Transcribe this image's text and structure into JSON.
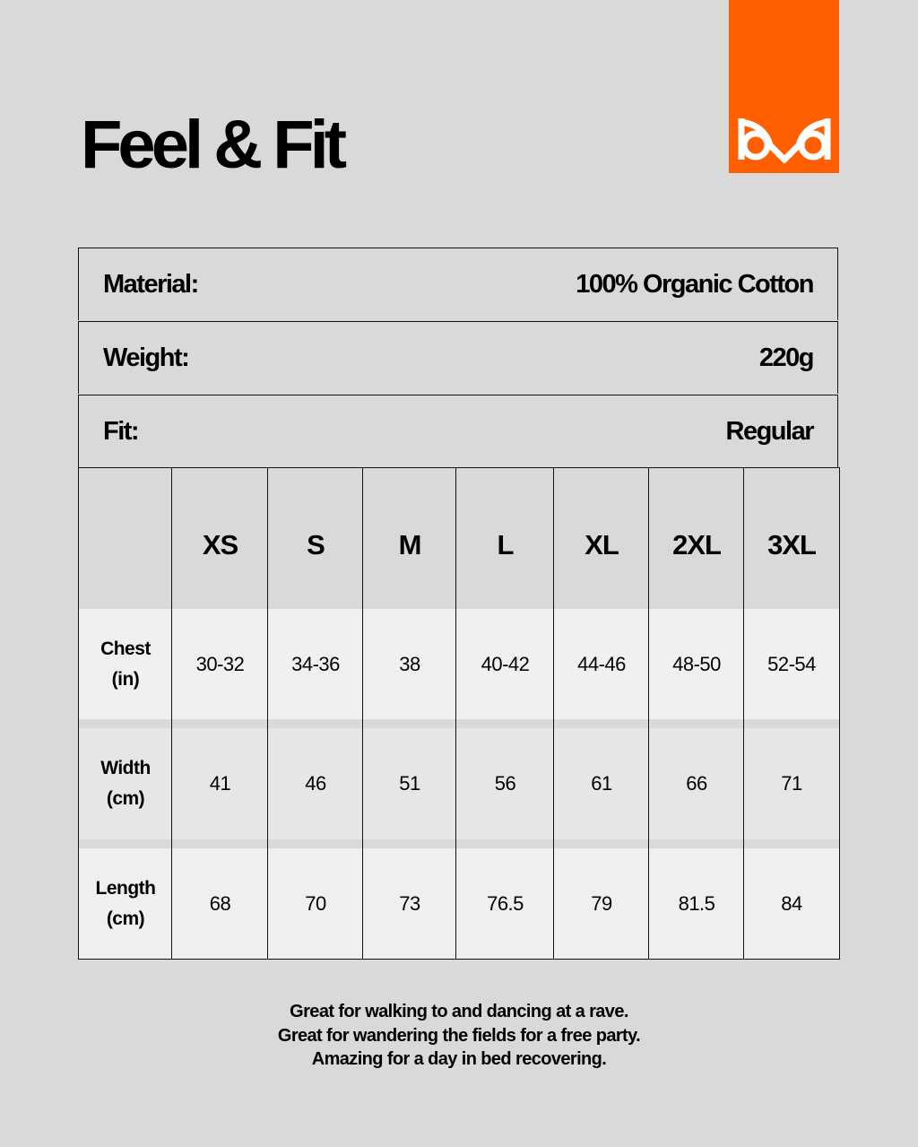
{
  "title": "Feel & Fit",
  "brand_color": "#ff5f00",
  "specs": [
    {
      "label": "Material:",
      "value": "100% Organic Cotton"
    },
    {
      "label": "Weight:",
      "value": "220g"
    },
    {
      "label": "Fit:",
      "value": "Regular"
    }
  ],
  "size_table": {
    "sizes": [
      "XS",
      "S",
      "M",
      "L",
      "XL",
      "2XL",
      "3XL"
    ],
    "rows": [
      {
        "label": [
          "Chest",
          "(in)"
        ],
        "values": [
          "30-32",
          "34-36",
          "38",
          "40-42",
          "44-46",
          "48-50",
          "52-54"
        ]
      },
      {
        "label": [
          "Width",
          "(cm)"
        ],
        "values": [
          "41",
          "46",
          "51",
          "56",
          "61",
          "66",
          "71"
        ]
      },
      {
        "label": [
          "Length",
          "(cm)"
        ],
        "values": [
          "68",
          "70",
          "73",
          "76.5",
          "79",
          "81.5",
          "84"
        ]
      }
    ]
  },
  "footer": [
    "Great for walking to and dancing at a rave.",
    "Great for wandering the fields for a free party.",
    "Amazing for a day in bed recovering."
  ]
}
